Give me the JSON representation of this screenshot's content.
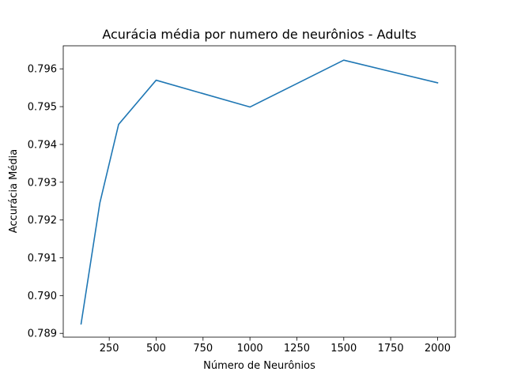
{
  "chart_data": {
    "type": "line",
    "title": "Acurácia média por numero de neurônios - Adults",
    "xlabel": "Número de Neurônios",
    "ylabel": "Accurácia Média",
    "xlim": [
      5,
      2095
    ],
    "ylim": [
      0.7889,
      0.79661
    ],
    "xticks": [
      250,
      500,
      750,
      1000,
      1250,
      1500,
      1750,
      2000
    ],
    "xtick_labels": [
      "250",
      "500",
      "750",
      "1000",
      "1250",
      "1500",
      "1750",
      "2000"
    ],
    "yticks": [
      0.789,
      0.79,
      0.791,
      0.792,
      0.793,
      0.794,
      0.795,
      0.796
    ],
    "ytick_labels": [
      "0.789",
      "0.790",
      "0.791",
      "0.792",
      "0.793",
      "0.794",
      "0.795",
      "0.796"
    ],
    "grid": false,
    "series": [
      {
        "color": "#1f77b4",
        "x": [
          100,
          200,
          300,
          500,
          1000,
          1500,
          2000
        ],
        "y": [
          0.78925,
          0.79245,
          0.79453,
          0.7957,
          0.79499,
          0.79623,
          0.79563
        ]
      }
    ]
  }
}
